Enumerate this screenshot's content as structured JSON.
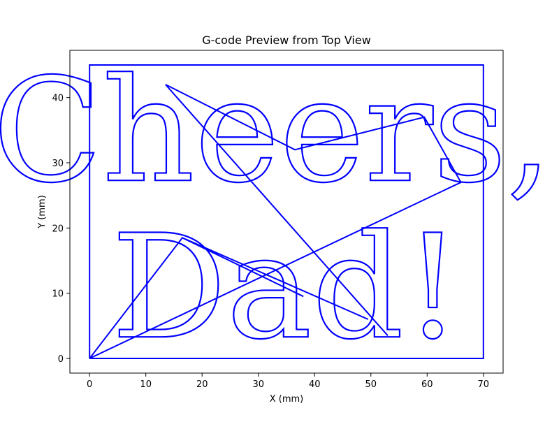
{
  "chart_data": {
    "type": "line",
    "title": "G-code Preview from Top View",
    "xlabel": "X (mm)",
    "ylabel": "Y (mm)",
    "xlim": [
      -3.5,
      73.5
    ],
    "ylim": [
      -2.25,
      47.25
    ],
    "xticks": [
      0,
      10,
      20,
      30,
      40,
      50,
      60,
      70
    ],
    "yticks": [
      0,
      10,
      20,
      30,
      40
    ],
    "grid": false,
    "series": [
      {
        "type": "line",
        "color": "#0000ff",
        "x": [
          0,
          70,
          70,
          0,
          0
        ],
        "y": [
          0,
          0,
          45,
          45,
          0
        ]
      },
      {
        "type": "line",
        "color": "#0000ff",
        "x": [
          0,
          16.5,
          38,
          16.5,
          49.5,
          16.5,
          0,
          66,
          59.5,
          36.5,
          13.5,
          53
        ],
        "y": [
          0,
          18.5,
          9.5,
          18.5,
          6,
          18.5,
          0,
          27,
          37,
          32,
          42,
          3.5
        ]
      },
      {
        "type": "glyphs",
        "color": "#0000ff",
        "texts": [
          {
            "text": "Cheers,",
            "x": 32.5,
            "y": 27.3,
            "size_mm": 22
          },
          {
            "text": "Dad!",
            "x": 35.0,
            "y": 3.3,
            "size_mm": 22
          }
        ]
      }
    ]
  }
}
